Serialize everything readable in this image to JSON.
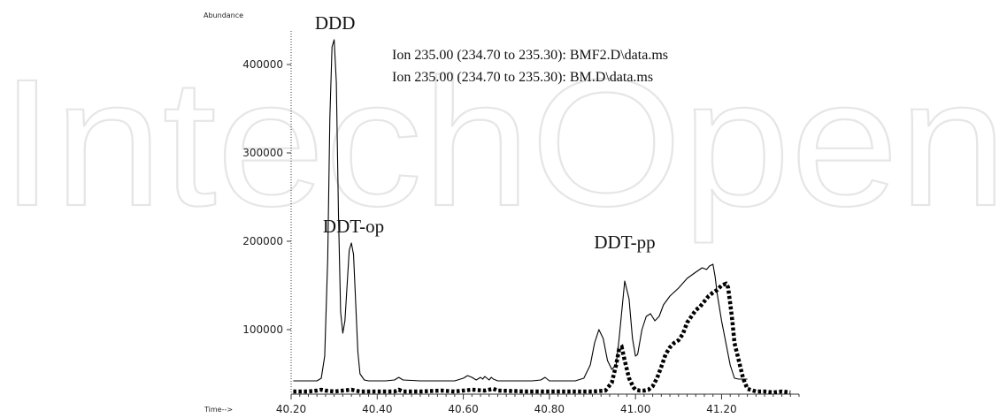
{
  "watermark": {
    "text": "IntechOpen"
  },
  "chart_data": {
    "type": "line",
    "xlabel": "Time-->",
    "ylabel": "Abundance",
    "xlim": [
      40.2,
      41.38
    ],
    "ylim": [
      27000,
      438000
    ],
    "xticks": [
      {
        "value": 40.2,
        "label": "40.20"
      },
      {
        "value": 40.4,
        "label": "40.40"
      },
      {
        "value": 40.6,
        "label": "40.60"
      },
      {
        "value": 40.8,
        "label": "40.80"
      },
      {
        "value": 41.0,
        "label": "41.00"
      },
      {
        "value": 41.2,
        "label": "41.20"
      }
    ],
    "yticks": [
      {
        "value": 100000,
        "label": "100000"
      },
      {
        "value": 200000,
        "label": "200000"
      },
      {
        "value": 300000,
        "label": "300000"
      },
      {
        "value": 400000,
        "label": "400000"
      }
    ],
    "legend": [
      "Ion 235.00 (234.70 to 235.30): BMF2.D\\data.ms",
      "Ion 235.00 (234.70 to 235.30): BM.D\\data.ms"
    ],
    "annotations": [
      {
        "text": "DDD",
        "x": 40.302,
        "y": 428000
      },
      {
        "text": "DDT-op",
        "x": 40.345,
        "y": 198000
      },
      {
        "text": "DDT-pp",
        "x": 40.975,
        "y": 180000
      }
    ],
    "series": [
      {
        "style": "solid",
        "color": "#000000",
        "x": [
          40.205,
          40.26,
          40.27,
          40.278,
          40.285,
          40.29,
          40.295,
          40.3,
          40.305,
          40.31,
          40.315,
          40.32,
          40.325,
          40.33,
          40.335,
          40.34,
          40.345,
          40.35,
          40.355,
          40.36,
          40.37,
          40.38,
          40.42,
          40.44,
          40.45,
          40.46,
          40.5,
          40.58,
          40.6,
          40.61,
          40.62,
          40.63,
          40.64,
          40.645,
          40.65,
          40.66,
          40.665,
          40.67,
          40.68,
          40.76,
          40.78,
          40.79,
          40.8,
          40.82,
          40.86,
          40.88,
          40.895,
          40.905,
          40.915,
          40.925,
          40.935,
          40.945,
          40.955,
          40.962,
          40.968,
          40.975,
          40.985,
          40.993,
          41.0,
          41.005,
          41.015,
          41.025,
          41.035,
          41.045,
          41.055,
          41.065,
          41.08,
          41.1,
          41.12,
          41.14,
          41.155,
          41.165,
          41.172,
          41.18,
          41.185,
          41.19,
          41.2,
          41.21,
          41.22,
          41.23,
          41.24,
          41.26
        ],
        "y": [
          42000,
          42000,
          45000,
          70000,
          180000,
          340000,
          420000,
          428000,
          380000,
          230000,
          120000,
          96000,
          110000,
          150000,
          190000,
          198000,
          185000,
          130000,
          75000,
          50000,
          43000,
          42000,
          42000,
          43000,
          46000,
          43000,
          42000,
          42000,
          45000,
          48000,
          46000,
          43000,
          46000,
          44000,
          47000,
          43000,
          46000,
          44000,
          42000,
          42000,
          43000,
          46000,
          42000,
          42000,
          42000,
          45000,
          60000,
          85000,
          100000,
          90000,
          65000,
          55000,
          60000,
          90000,
          120000,
          155000,
          135000,
          90000,
          70000,
          72000,
          100000,
          115000,
          118000,
          110000,
          115000,
          128000,
          138000,
          147000,
          158000,
          165000,
          170000,
          168000,
          172000,
          174000,
          160000,
          140000,
          110000,
          85000,
          60000,
          45000,
          44000,
          44000
        ]
      },
      {
        "style": "dotted",
        "color": "#000000",
        "x": [
          40.205,
          40.24,
          40.26,
          40.27,
          40.28,
          40.3,
          40.32,
          40.34,
          40.36,
          40.4,
          40.44,
          40.45,
          40.46,
          40.5,
          40.55,
          40.58,
          40.6,
          40.62,
          40.65,
          40.67,
          40.68,
          40.75,
          40.8,
          40.85,
          40.9,
          40.93,
          40.945,
          40.955,
          40.962,
          40.968,
          40.975,
          40.985,
          40.995,
          41.0,
          41.01,
          41.02,
          41.03,
          41.04,
          41.05,
          41.06,
          41.07,
          41.08,
          41.09,
          41.1,
          41.11,
          41.12,
          41.13,
          41.14,
          41.15,
          41.16,
          41.17,
          41.18,
          41.19,
          41.2,
          41.21,
          41.215,
          41.22,
          41.225,
          41.23,
          41.24,
          41.25,
          41.26,
          41.28,
          41.3,
          41.32,
          41.34,
          41.36
        ],
        "y": [
          30000,
          30000,
          31000,
          32000,
          31000,
          30000,
          31000,
          32000,
          30000,
          30000,
          30000,
          32000,
          30000,
          30000,
          31000,
          30000,
          31000,
          32000,
          31000,
          33000,
          31000,
          30000,
          30000,
          30000,
          30000,
          31000,
          40000,
          60000,
          78000,
          80000,
          65000,
          45000,
          35000,
          32000,
          31000,
          31000,
          32000,
          36000,
          45000,
          58000,
          72000,
          80000,
          85000,
          88000,
          95000,
          108000,
          115000,
          122000,
          126000,
          132000,
          138000,
          142000,
          145000,
          150000,
          152000,
          148000,
          130000,
          110000,
          85000,
          65000,
          45000,
          33000,
          30000,
          30000,
          29000,
          30000,
          29000
        ]
      }
    ]
  }
}
